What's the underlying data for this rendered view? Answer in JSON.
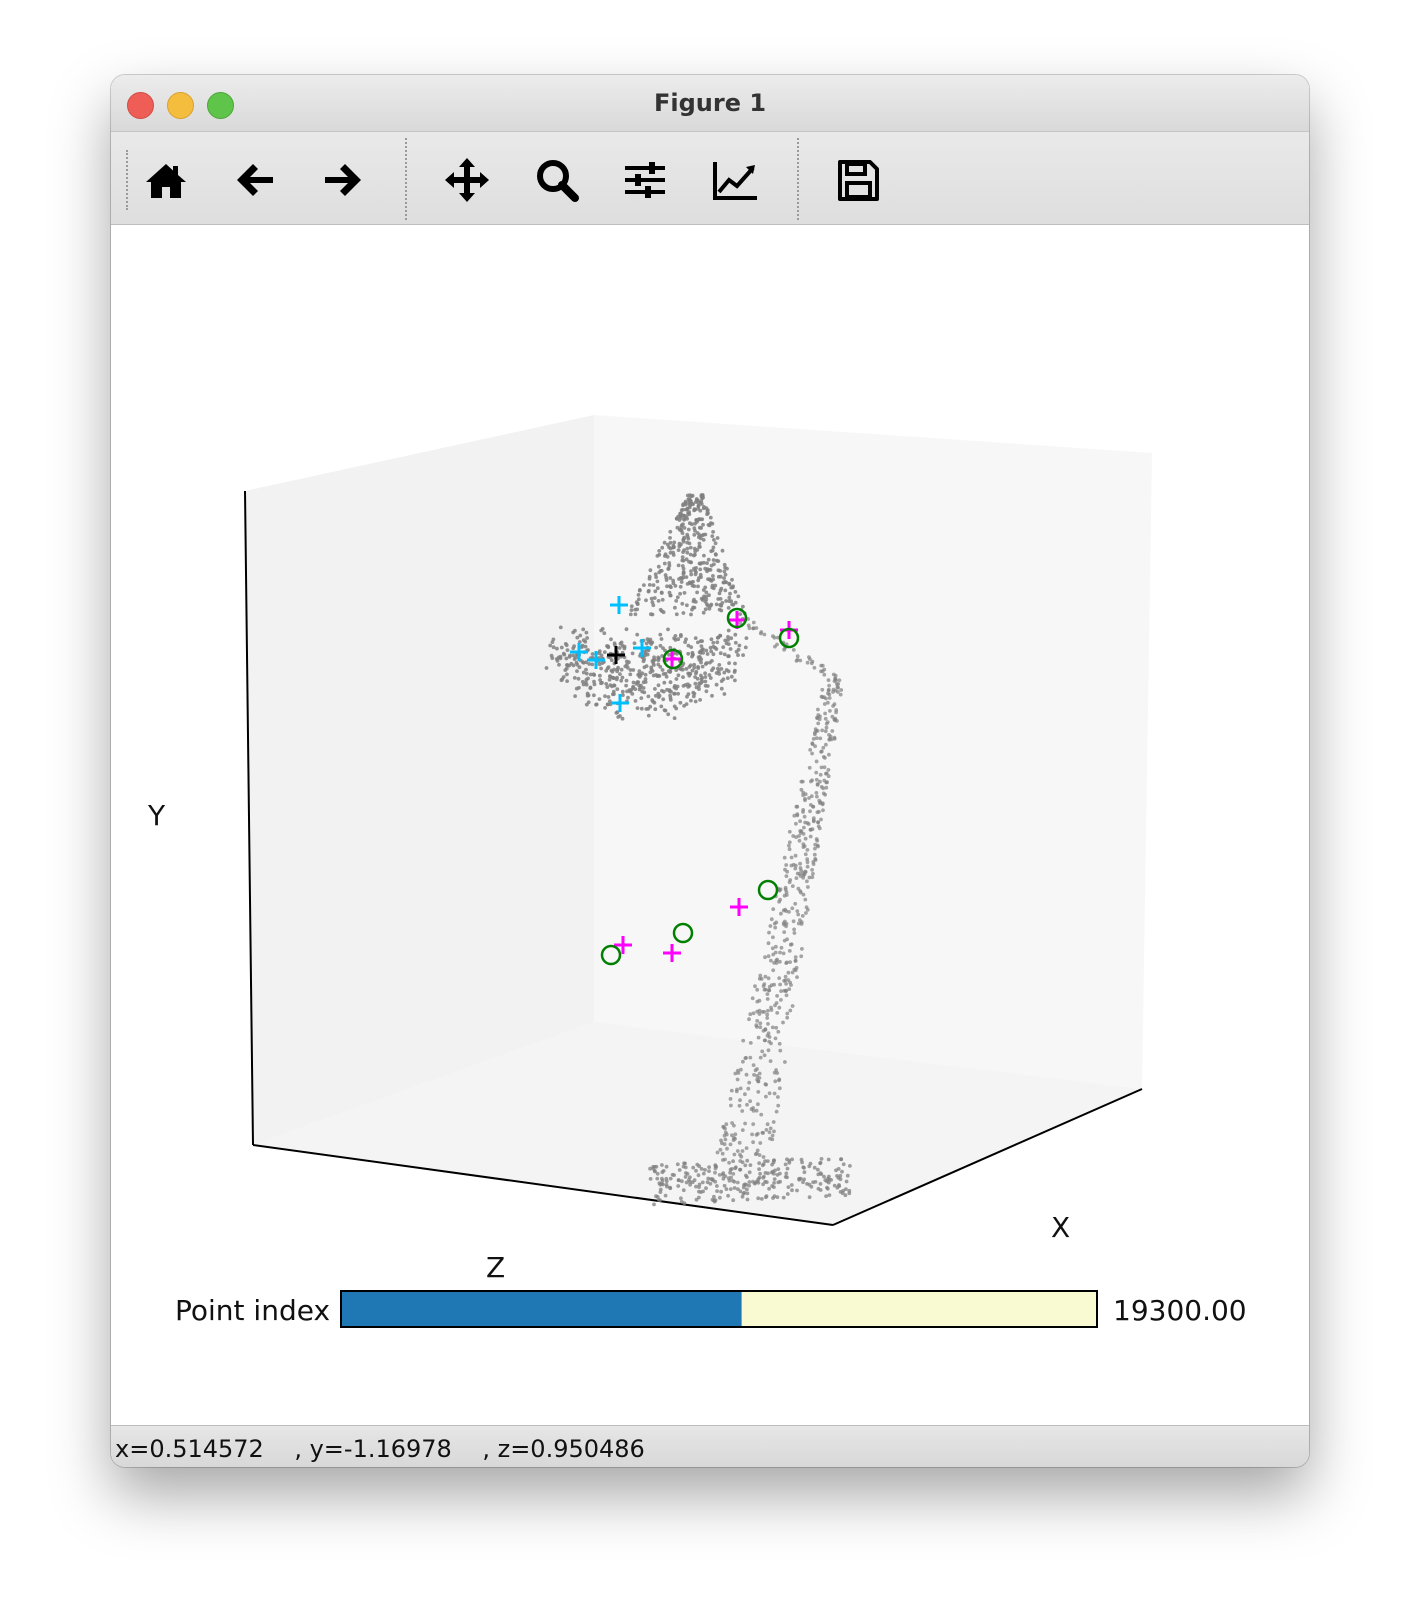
{
  "window": {
    "title": "Figure 1"
  },
  "toolbar": {
    "tools": [
      {
        "name": "home",
        "icon": "home-icon"
      },
      {
        "name": "back",
        "icon": "arrow-left-icon"
      },
      {
        "name": "forward",
        "icon": "arrow-right-icon"
      },
      {
        "name": "pan",
        "icon": "move-icon"
      },
      {
        "name": "zoom",
        "icon": "magnifier-icon"
      },
      {
        "name": "configure-subplots",
        "icon": "sliders-icon"
      },
      {
        "name": "edit-axes",
        "icon": "line-chart-icon"
      },
      {
        "name": "save",
        "icon": "floppy-disk-icon"
      }
    ]
  },
  "axes3d": {
    "xlabel": "X",
    "ylabel": "Y",
    "zlabel": "Z",
    "grid": false,
    "pane_color": "#f2f2f2"
  },
  "slider": {
    "label": "Point index",
    "value_text": "19300.00",
    "fraction": 0.53,
    "fill_color": "#1f77b4",
    "track_color": "#fafad2"
  },
  "status": {
    "x": "x=0.514572",
    "y": ", y=-1.16978",
    "z": ", z=0.950486"
  },
  "colors": {
    "points": "#808080",
    "cyan_markers": "#00bfff",
    "magenta_markers": "#ff00ff",
    "green_circles": "#008000"
  }
}
